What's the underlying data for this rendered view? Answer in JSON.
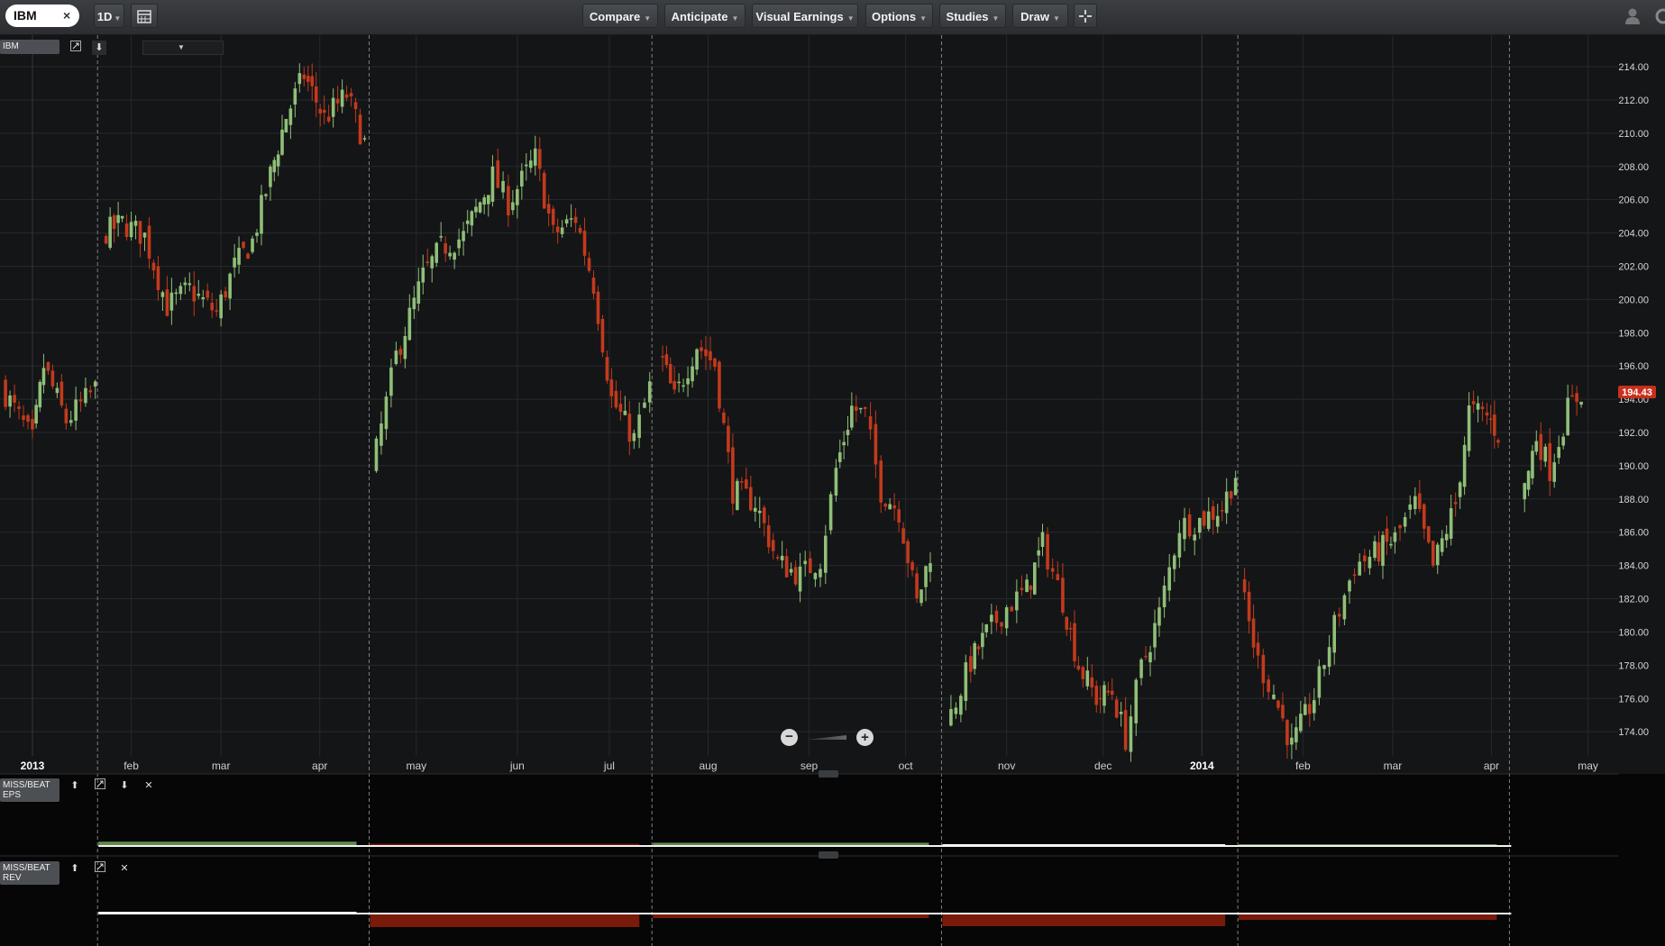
{
  "toolbar": {
    "symbol": "IBM",
    "interval": "1D",
    "menus": [
      "Compare",
      "Anticipate",
      "Visual Earnings",
      "Options",
      "Studies",
      "Draw"
    ]
  },
  "panels": {
    "main_label": "IBM",
    "eps_label_1": "MISS/BEAT",
    "eps_label_2": "EPS",
    "rev_label_1": "MISS/BEAT",
    "rev_label_2": "REV"
  },
  "colors": {
    "up": "#8fbf78",
    "down": "#c23a1c",
    "price_tag": "#c9301c",
    "grid": "#26292c"
  },
  "chart_data": {
    "type": "candlestick",
    "symbol": "IBM",
    "interval": "1D",
    "ylim": [
      172.6,
      215.9
    ],
    "yticks": [
      "174.00",
      "176.00",
      "178.00",
      "180.00",
      "182.00",
      "184.00",
      "186.00",
      "188.00",
      "190.00",
      "192.00",
      "194.00",
      "196.00",
      "198.00",
      "200.00",
      "202.00",
      "204.00",
      "206.00",
      "208.00",
      "210.00",
      "212.00",
      "214.00"
    ],
    "last_price": 194.43,
    "last_price_label": "194.43",
    "xlabels": [
      {
        "label": "2013",
        "week": 0.0,
        "major": true
      },
      {
        "label": "feb",
        "week": 4.4
      },
      {
        "label": "mar",
        "week": 8.4
      },
      {
        "label": "apr",
        "week": 12.8
      },
      {
        "label": "may",
        "week": 17.1
      },
      {
        "label": "jun",
        "week": 21.6
      },
      {
        "label": "jul",
        "week": 25.7
      },
      {
        "label": "aug",
        "week": 30.1
      },
      {
        "label": "sep",
        "week": 34.6
      },
      {
        "label": "oct",
        "week": 38.9
      },
      {
        "label": "nov",
        "week": 43.4
      },
      {
        "label": "dec",
        "week": 47.7
      },
      {
        "label": "2014",
        "week": 52.1,
        "major": true
      },
      {
        "label": "feb",
        "week": 56.6
      },
      {
        "label": "mar",
        "week": 60.6
      },
      {
        "label": "apr",
        "week": 65.0
      },
      {
        "label": "may",
        "week": 69.3
      }
    ],
    "earnings_weeks": [
      2.9,
      15.0,
      27.6,
      40.5,
      53.7,
      65.8
    ],
    "price_path": [
      {
        "week": -1.4,
        "price": 194.8
      },
      {
        "week": 0.0,
        "price": 191.5
      },
      {
        "week": 0.5,
        "price": 196.0
      },
      {
        "week": 1.5,
        "price": 192.7
      },
      {
        "week": 2.8,
        "price": 194.6
      },
      {
        "week": 3.1,
        "price": 203.9
      },
      {
        "week": 4.0,
        "price": 204.6
      },
      {
        "week": 5.0,
        "price": 203.8
      },
      {
        "week": 6.0,
        "price": 199.6
      },
      {
        "week": 7.0,
        "price": 200.6
      },
      {
        "week": 8.2,
        "price": 199.2
      },
      {
        "week": 9.0,
        "price": 202.0
      },
      {
        "week": 9.8,
        "price": 203.5
      },
      {
        "week": 10.6,
        "price": 207.5
      },
      {
        "week": 11.3,
        "price": 211.0
      },
      {
        "week": 12.1,
        "price": 213.5
      },
      {
        "week": 13.0,
        "price": 210.9
      },
      {
        "week": 14.0,
        "price": 212.3
      },
      {
        "week": 14.8,
        "price": 209.4
      },
      {
        "week": 15.1,
        "price": 189.5
      },
      {
        "week": 16.2,
        "price": 196.6
      },
      {
        "week": 17.4,
        "price": 201.4
      },
      {
        "week": 18.2,
        "price": 203.1
      },
      {
        "week": 19.2,
        "price": 203.8
      },
      {
        "week": 20.5,
        "price": 207.4
      },
      {
        "week": 21.2,
        "price": 205.8
      },
      {
        "week": 22.4,
        "price": 208.5
      },
      {
        "week": 23.2,
        "price": 203.9
      },
      {
        "week": 24.2,
        "price": 204.9
      },
      {
        "week": 25.0,
        "price": 200.9
      },
      {
        "week": 25.8,
        "price": 194.0
      },
      {
        "week": 26.8,
        "price": 191.6
      },
      {
        "week": 27.5,
        "price": 194.7
      },
      {
        "week": 27.9,
        "price": 197.0
      },
      {
        "week": 28.6,
        "price": 194.0
      },
      {
        "week": 29.6,
        "price": 197.3
      },
      {
        "week": 30.4,
        "price": 196.1
      },
      {
        "week": 31.2,
        "price": 188.5
      },
      {
        "week": 32.2,
        "price": 187.8
      },
      {
        "week": 33.2,
        "price": 184.2
      },
      {
        "week": 34.2,
        "price": 183.4
      },
      {
        "week": 35.1,
        "price": 184.4
      },
      {
        "week": 35.8,
        "price": 189.8
      },
      {
        "week": 36.5,
        "price": 193.5
      },
      {
        "week": 37.1,
        "price": 193.0
      },
      {
        "week": 37.8,
        "price": 188.5
      },
      {
        "week": 38.6,
        "price": 187.3
      },
      {
        "week": 39.4,
        "price": 181.7
      },
      {
        "week": 40.0,
        "price": 184.8
      },
      {
        "week": 40.4,
        "price": 185.4
      },
      {
        "week": 40.7,
        "price": 174.3
      },
      {
        "week": 41.8,
        "price": 178.2
      },
      {
        "week": 42.5,
        "price": 179.9
      },
      {
        "week": 43.4,
        "price": 181.5
      },
      {
        "week": 44.3,
        "price": 182.5
      },
      {
        "week": 45.0,
        "price": 185.3
      },
      {
        "week": 45.9,
        "price": 181.9
      },
      {
        "week": 46.6,
        "price": 178.0
      },
      {
        "week": 47.4,
        "price": 176.0
      },
      {
        "week": 48.1,
        "price": 176.4
      },
      {
        "week": 48.7,
        "price": 173.6
      },
      {
        "week": 49.4,
        "price": 177.8
      },
      {
        "week": 50.2,
        "price": 181.1
      },
      {
        "week": 51.1,
        "price": 186.4
      },
      {
        "week": 52.0,
        "price": 186.7
      },
      {
        "week": 53.0,
        "price": 187.5
      },
      {
        "week": 53.6,
        "price": 189.5
      },
      {
        "week": 53.8,
        "price": 182.8
      },
      {
        "week": 54.6,
        "price": 178.2
      },
      {
        "week": 55.3,
        "price": 176.3
      },
      {
        "week": 56.1,
        "price": 173.1
      },
      {
        "week": 57.1,
        "price": 176.1
      },
      {
        "week": 58.0,
        "price": 180.4
      },
      {
        "week": 58.9,
        "price": 184.0
      },
      {
        "week": 59.8,
        "price": 184.7
      },
      {
        "week": 60.7,
        "price": 185.6
      },
      {
        "week": 61.6,
        "price": 187.7
      },
      {
        "week": 62.4,
        "price": 183.9
      },
      {
        "week": 63.4,
        "price": 187.7
      },
      {
        "week": 64.0,
        "price": 193.3
      },
      {
        "week": 64.8,
        "price": 193.0
      },
      {
        "week": 65.3,
        "price": 191.9
      },
      {
        "week": 65.6,
        "price": 196.6
      },
      {
        "week": 66.0,
        "price": 195.2
      },
      {
        "week": 66.3,
        "price": 187.6
      },
      {
        "week": 67.0,
        "price": 191.8
      },
      {
        "week": 67.6,
        "price": 189.8
      },
      {
        "week": 68.4,
        "price": 193.4
      },
      {
        "week": 69.0,
        "price": 194.43
      }
    ],
    "eps_bars": [
      {
        "quarter": 1,
        "start": 2.9,
        "end": 15.0,
        "kind": "beat",
        "value": 0.8
      },
      {
        "quarter": 2,
        "start": 15.0,
        "end": 27.6,
        "kind": "miss",
        "value": 0.4
      },
      {
        "quarter": 3,
        "start": 27.6,
        "end": 40.5,
        "kind": "beat",
        "value": 0.6
      },
      {
        "quarter": 4,
        "start": 40.5,
        "end": 53.7,
        "kind": "flat",
        "value": 0.0
      },
      {
        "quarter": 5,
        "start": 53.7,
        "end": 65.8,
        "kind": "beat",
        "value": 0.2
      }
    ],
    "rev_bars": [
      {
        "quarter": 1,
        "start": 2.9,
        "end": 15.0,
        "kind": "flat",
        "value": 0.0
      },
      {
        "quarter": 2,
        "start": 15.0,
        "end": 27.6,
        "kind": "miss",
        "value": -1.5
      },
      {
        "quarter": 3,
        "start": 27.6,
        "end": 40.5,
        "kind": "miss",
        "value": -0.5
      },
      {
        "quarter": 4,
        "start": 40.5,
        "end": 53.7,
        "kind": "miss",
        "value": -1.4
      },
      {
        "quarter": 5,
        "start": 53.7,
        "end": 65.8,
        "kind": "miss",
        "value": -0.7
      }
    ]
  }
}
